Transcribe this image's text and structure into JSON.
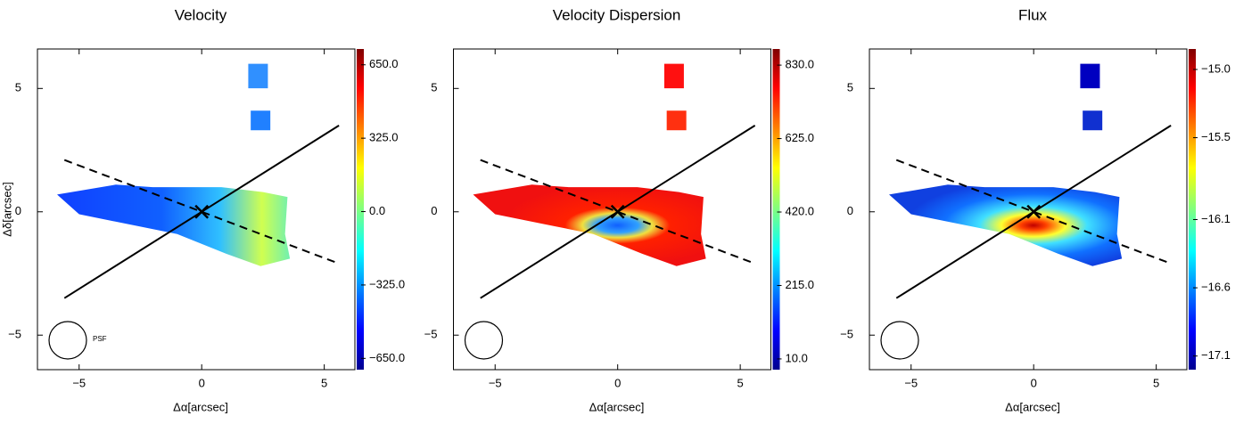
{
  "chart_data": [
    {
      "type": "image",
      "title": "Velocity",
      "xlabel": "Δα[arcsec]",
      "ylabel": "Δδ[arcsec]",
      "annotation": "PSF",
      "xlim": [
        -6.7,
        6.25
      ],
      "ylim": [
        -6.4,
        6.6
      ],
      "xticks": [
        {
          "value": -5,
          "label": "−5"
        },
        0,
        5
      ],
      "yticks": [
        {
          "value": -5,
          "label": "−5"
        },
        0,
        5
      ],
      "colorbar": {
        "lim": [
          -700,
          720
        ],
        "ticks": [
          {
            "value": -650,
            "label": "−650.0"
          },
          {
            "value": -325,
            "label": "−325.0"
          },
          {
            "value": 0,
            "label": "0.0"
          },
          {
            "value": 325,
            "label": "325.0"
          },
          {
            "value": 650,
            "label": "650.0"
          }
        ]
      },
      "lines": [
        {
          "style": "solid",
          "x": [
            -5.6,
            5.6
          ],
          "y": [
            -3.5,
            3.5
          ]
        },
        {
          "style": "dashed",
          "x": [
            -5.6,
            5.6
          ],
          "y": [
            2.1,
            -2.1
          ]
        }
      ]
    },
    {
      "type": "image",
      "title": "Velocity Dispersion",
      "xlabel": "Δα[arcsec]",
      "xlim": [
        -6.7,
        6.25
      ],
      "ylim": [
        -6.4,
        6.6
      ],
      "xticks": [
        {
          "value": -5,
          "label": "−5"
        },
        0,
        5
      ],
      "yticks": [
        {
          "value": -5,
          "label": "−5"
        },
        0,
        5
      ],
      "colorbar": {
        "lim": [
          -20,
          875
        ],
        "ticks": [
          {
            "value": 10,
            "label": "10.0"
          },
          {
            "value": 215,
            "label": "215.0"
          },
          {
            "value": 420,
            "label": "420.0"
          },
          {
            "value": 625,
            "label": "625.0"
          },
          {
            "value": 830,
            "label": "830.0"
          }
        ]
      },
      "lines": [
        {
          "style": "solid",
          "x": [
            -5.6,
            5.6
          ],
          "y": [
            -3.5,
            3.5
          ]
        },
        {
          "style": "dashed",
          "x": [
            -5.6,
            5.6
          ],
          "y": [
            2.1,
            -2.1
          ]
        }
      ]
    },
    {
      "type": "image",
      "title": "Flux",
      "xlabel": "Δα[arcsec]",
      "xlim": [
        -6.7,
        6.25
      ],
      "ylim": [
        -6.4,
        6.6
      ],
      "xticks": [
        {
          "value": -5,
          "label": "−5"
        },
        0,
        5
      ],
      "yticks": [
        {
          "value": -5,
          "label": "−5"
        },
        0,
        5
      ],
      "colorbar": {
        "lim": [
          -17.2,
          -14.85
        ],
        "ticks": [
          {
            "value": -17.1,
            "label": "−17.1"
          },
          {
            "value": -16.6,
            "label": "−16.6"
          },
          {
            "value": -16.1,
            "label": "−16.1"
          },
          {
            "value": -15.5,
            "label": "−15.5"
          },
          {
            "value": -15.0,
            "label": "−15.0"
          }
        ]
      },
      "lines": [
        {
          "style": "solid",
          "x": [
            -5.6,
            5.6
          ],
          "y": [
            -3.5,
            3.5
          ]
        },
        {
          "style": "dashed",
          "x": [
            -5.6,
            5.6
          ],
          "y": [
            2.1,
            -2.1
          ]
        }
      ]
    }
  ]
}
